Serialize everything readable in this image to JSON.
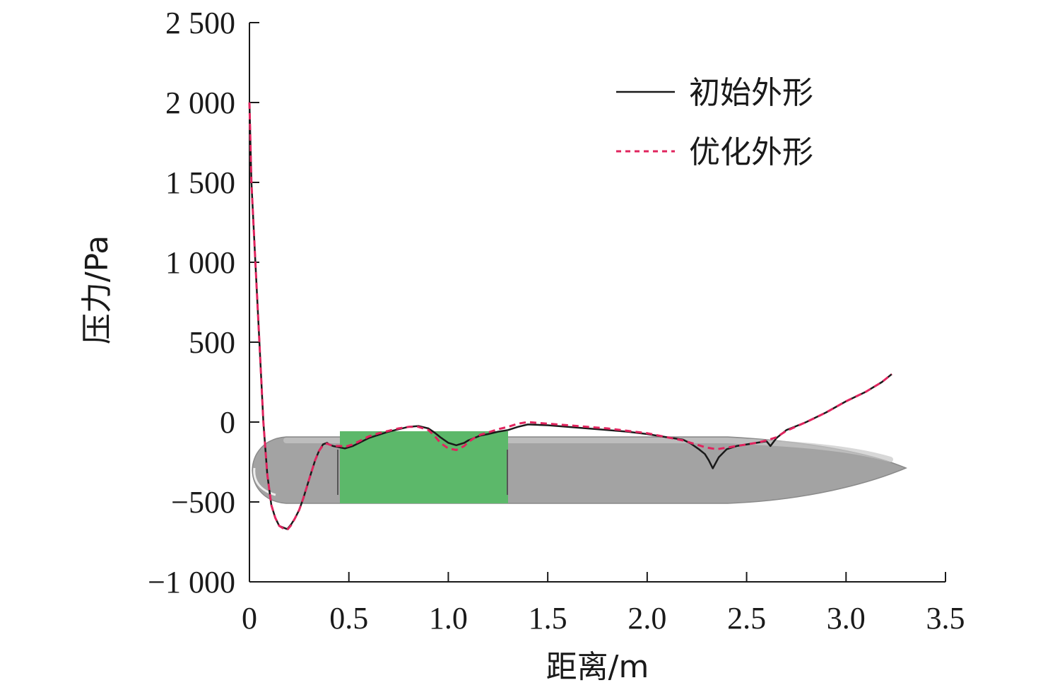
{
  "chart_data": {
    "type": "line",
    "title": "",
    "xlabel": "距离/m",
    "ylabel": "压力/Pa",
    "xlim": [
      0,
      3.5
    ],
    "ylim": [
      -1000,
      2500
    ],
    "x_ticks": [
      0,
      0.5,
      1.0,
      1.5,
      2.0,
      2.5,
      3.0,
      3.5
    ],
    "x_tick_labels": [
      "0",
      "0.5",
      "1.0",
      "1.5",
      "2.0",
      "2.5",
      "3.0",
      "3.5"
    ],
    "y_ticks": [
      -1000,
      -500,
      0,
      500,
      1000,
      1500,
      2000,
      2500
    ],
    "y_tick_labels": [
      "−1 000",
      "−500",
      "0",
      "500",
      "1 000",
      "1 500",
      "2 000",
      "2 500"
    ],
    "grid": false,
    "legend_position": "top-right",
    "background_graphic": {
      "description": "hull silhouette",
      "body_color": "#a3a3a3",
      "section_color": "#5cb86a"
    },
    "series": [
      {
        "name": "初始外形",
        "color": "#1a1a1a",
        "dash": "solid",
        "x": [
          0,
          0.01,
          0.03,
          0.05,
          0.07,
          0.09,
          0.11,
          0.13,
          0.15,
          0.17,
          0.19,
          0.21,
          0.23,
          0.25,
          0.27,
          0.29,
          0.31,
          0.33,
          0.35,
          0.37,
          0.39,
          0.4,
          0.42,
          0.44,
          0.46,
          0.48,
          0.52,
          0.56,
          0.6,
          0.65,
          0.7,
          0.75,
          0.8,
          0.85,
          0.9,
          0.93,
          0.96,
          1.0,
          1.04,
          1.08,
          1.1,
          1.13,
          1.16,
          1.2,
          1.25,
          1.3,
          1.35,
          1.4,
          1.5,
          1.6,
          1.7,
          1.8,
          1.9,
          2.0,
          2.1,
          2.18,
          2.22,
          2.26,
          2.29,
          2.31,
          2.33,
          2.36,
          2.4,
          2.45,
          2.5,
          2.55,
          2.6,
          2.62,
          2.65,
          2.7,
          2.8,
          2.9,
          3.0,
          3.1,
          3.18,
          3.23
        ],
        "y": [
          2000,
          1500,
          1000,
          500,
          0,
          -330,
          -520,
          -600,
          -650,
          -660,
          -670,
          -640,
          -600,
          -550,
          -480,
          -400,
          -320,
          -240,
          -180,
          -140,
          -130,
          -140,
          -150,
          -155,
          -160,
          -165,
          -150,
          -125,
          -100,
          -80,
          -60,
          -45,
          -30,
          -25,
          -40,
          -65,
          -95,
          -130,
          -145,
          -130,
          -115,
          -100,
          -85,
          -75,
          -60,
          -50,
          -30,
          -15,
          -20,
          -30,
          -40,
          -50,
          -60,
          -75,
          -95,
          -110,
          -135,
          -170,
          -200,
          -240,
          -290,
          -220,
          -170,
          -150,
          -140,
          -130,
          -120,
          -150,
          -100,
          -50,
          0,
          60,
          130,
          190,
          250,
          300
        ]
      },
      {
        "name": "优化外形",
        "color": "#e0245e",
        "dash": "dashed",
        "x": [
          0,
          0.01,
          0.03,
          0.05,
          0.07,
          0.09,
          0.11,
          0.13,
          0.15,
          0.17,
          0.19,
          0.21,
          0.23,
          0.25,
          0.27,
          0.29,
          0.31,
          0.33,
          0.35,
          0.37,
          0.39,
          0.4,
          0.42,
          0.44,
          0.46,
          0.48,
          0.52,
          0.56,
          0.6,
          0.65,
          0.7,
          0.75,
          0.8,
          0.85,
          0.9,
          0.93,
          0.96,
          1.0,
          1.04,
          1.08,
          1.1,
          1.13,
          1.16,
          1.2,
          1.25,
          1.3,
          1.35,
          1.4,
          1.5,
          1.6,
          1.7,
          1.8,
          1.9,
          2.0,
          2.1,
          2.18,
          2.22,
          2.26,
          2.3,
          2.35,
          2.4,
          2.45,
          2.5,
          2.55,
          2.6,
          2.65,
          2.7,
          2.8,
          2.9,
          3.0,
          3.1,
          3.18,
          3.23
        ],
        "y": [
          2000,
          1500,
          1000,
          500,
          0,
          -330,
          -520,
          -600,
          -650,
          -665,
          -675,
          -645,
          -600,
          -550,
          -480,
          -400,
          -320,
          -240,
          -180,
          -145,
          -135,
          -140,
          -150,
          -150,
          -150,
          -155,
          -140,
          -115,
          -90,
          -70,
          -55,
          -40,
          -30,
          -30,
          -50,
          -85,
          -130,
          -165,
          -175,
          -150,
          -125,
          -100,
          -80,
          -65,
          -45,
          -30,
          -10,
          0,
          -10,
          -20,
          -30,
          -40,
          -55,
          -70,
          -95,
          -115,
          -130,
          -145,
          -160,
          -170,
          -160,
          -150,
          -140,
          -130,
          -115,
          -95,
          -55,
          0,
          60,
          130,
          190,
          250,
          300
        ]
      }
    ]
  }
}
